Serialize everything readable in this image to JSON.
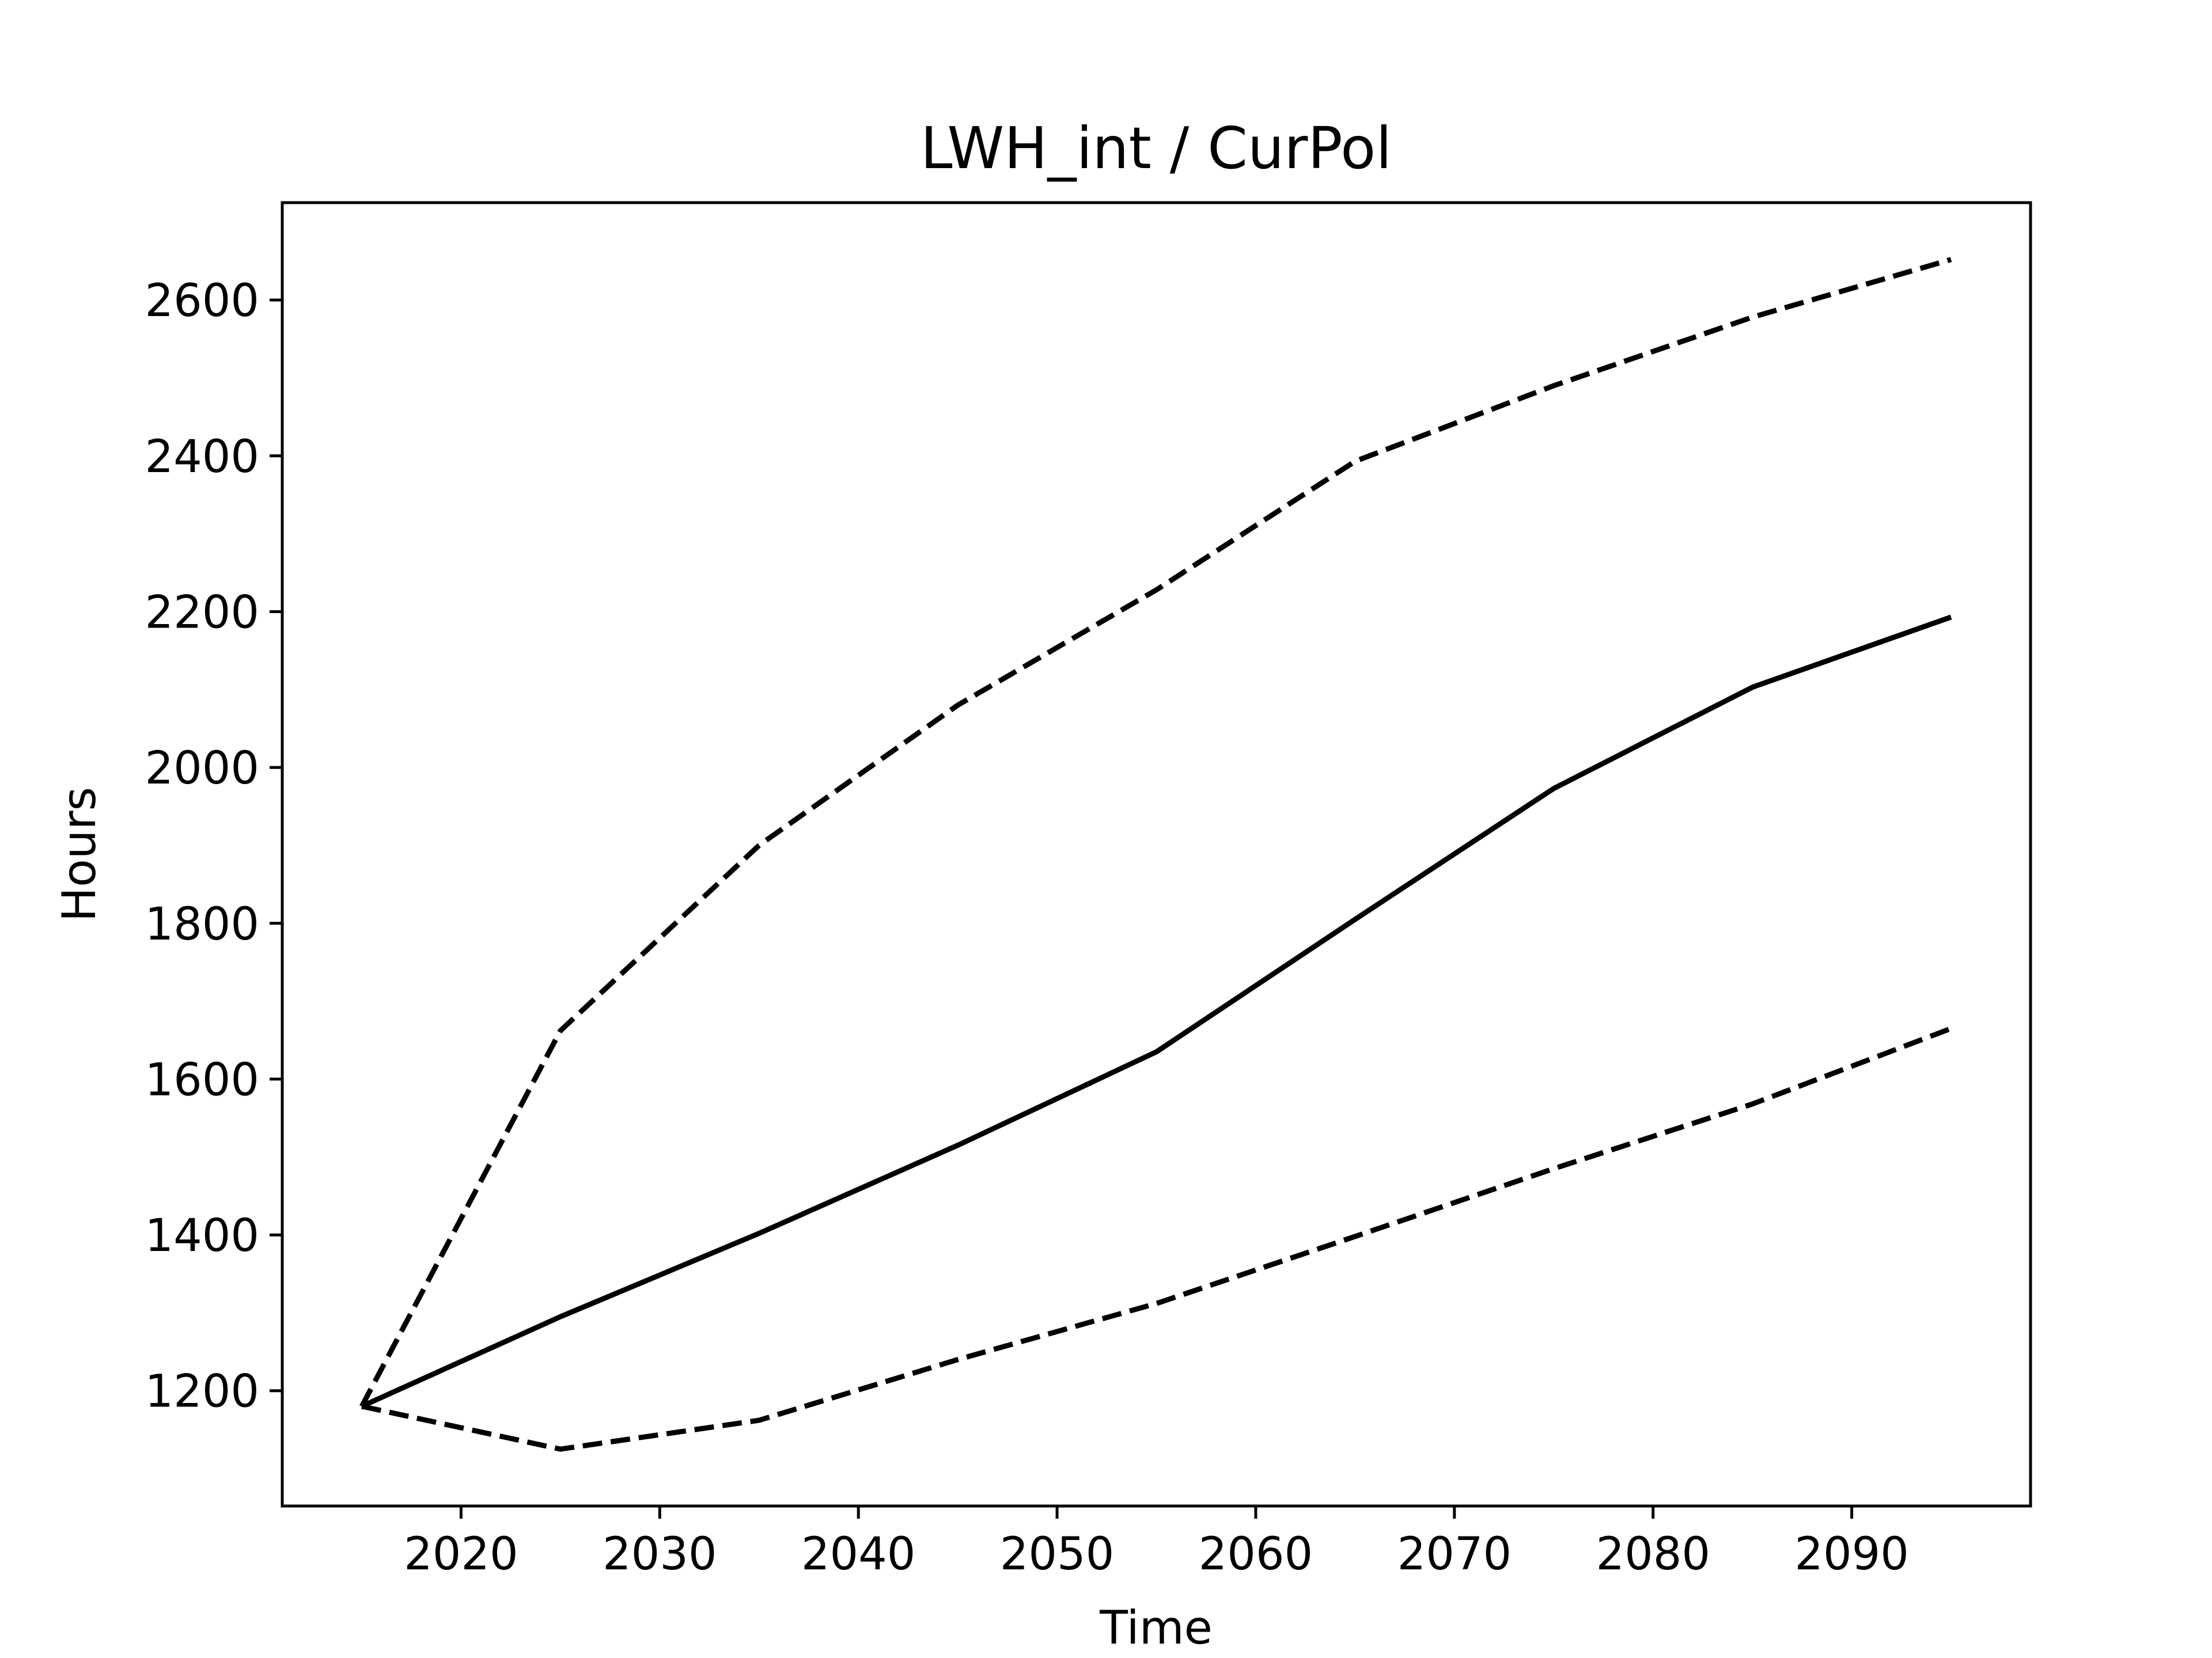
{
  "chart_data": {
    "type": "line",
    "title": "LWH_int / CurPol",
    "xlabel": "Time",
    "ylabel": "Hours",
    "xlim": [
      2011,
      2099
    ],
    "ylim": [
      1052,
      2725
    ],
    "xticks": [
      2020,
      2030,
      2040,
      2050,
      2060,
      2070,
      2080,
      2090
    ],
    "xtick_labels": [
      "2020",
      "2030",
      "2040",
      "2050",
      "2060",
      "2070",
      "2080",
      "2090"
    ],
    "yticks": [
      1200,
      1400,
      1600,
      1800,
      2000,
      2200,
      2400,
      2600
    ],
    "ytick_labels": [
      "1200",
      "1400",
      "1600",
      "1800",
      "2000",
      "2200",
      "2400",
      "2600"
    ],
    "grid": false,
    "x": [
      2015,
      2025,
      2035,
      2045,
      2055,
      2065,
      2075,
      2085,
      2095
    ],
    "series": [
      {
        "style": "dashed",
        "color": "#000000",
        "values": [
          1180,
          1662,
          1900,
          2080,
          2228,
          2393,
          2490,
          2578,
          2652
        ]
      },
      {
        "style": "solid",
        "color": "#000000",
        "values": [
          1180,
          1295,
          1402,
          1515,
          1635,
          1805,
          1973,
          2103,
          2193
        ]
      },
      {
        "style": "dashed",
        "color": "#000000",
        "values": [
          1180,
          1125,
          1162,
          1240,
          1312,
          1398,
          1485,
          1568,
          1665
        ]
      }
    ]
  }
}
